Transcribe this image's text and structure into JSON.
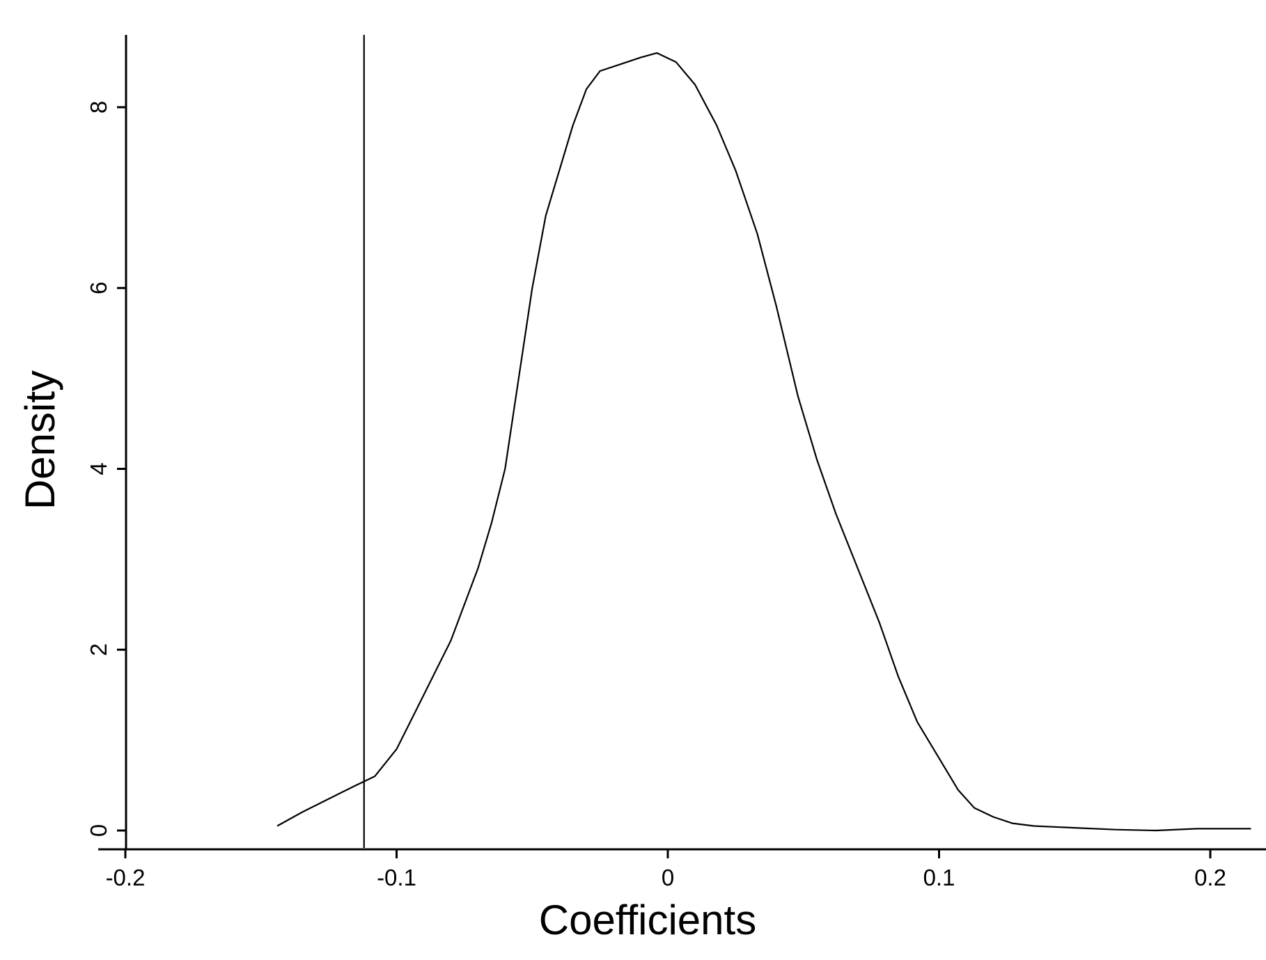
{
  "chart_data": {
    "type": "line",
    "title": "",
    "xlabel": "Coefficients",
    "ylabel": "Density",
    "xlim": [
      -0.21,
      0.225
    ],
    "ylim": [
      -0.2,
      8.8
    ],
    "x_ticks": [
      -0.2,
      -0.1,
      0,
      0.1,
      0.2
    ],
    "x_tick_labels": [
      "-0.2",
      "-0.1",
      "0",
      "0.1",
      "0.2"
    ],
    "y_ticks": [
      0,
      2,
      4,
      6,
      8
    ],
    "y_tick_labels": [
      "0",
      "2",
      "4",
      "6",
      "8"
    ],
    "grid": false,
    "legend": "none",
    "series": [
      {
        "x": [
          -0.144,
          -0.135,
          -0.125,
          -0.115,
          -0.108,
          -0.1,
          -0.095,
          -0.09,
          -0.085,
          -0.08,
          -0.075,
          -0.07,
          -0.065,
          -0.06,
          -0.055,
          -0.05,
          -0.045,
          -0.04,
          -0.035,
          -0.03,
          -0.025,
          -0.02,
          -0.015,
          -0.01,
          -0.004,
          0.003,
          0.01,
          0.018,
          0.025,
          0.033,
          0.04,
          0.048,
          0.055,
          0.062,
          0.07,
          0.078,
          0.085,
          0.092,
          0.1,
          0.107,
          0.113,
          0.12,
          0.127,
          0.135,
          0.15,
          0.165,
          0.18,
          0.195,
          0.215
        ],
        "y": [
          0.05,
          0.2,
          0.35,
          0.5,
          0.6,
          0.9,
          1.2,
          1.5,
          1.8,
          2.1,
          2.5,
          2.9,
          3.4,
          4.0,
          5.0,
          6.0,
          6.8,
          7.3,
          7.8,
          8.2,
          8.4,
          8.45,
          8.5,
          8.55,
          8.6,
          8.5,
          8.25,
          7.8,
          7.3,
          6.6,
          5.8,
          4.8,
          4.1,
          3.5,
          2.9,
          2.3,
          1.7,
          1.2,
          0.8,
          0.45,
          0.25,
          0.15,
          0.08,
          0.05,
          0.03,
          0.01,
          0.0,
          0.02,
          0.02
        ]
      }
    ],
    "annotations": [
      {
        "type": "vline",
        "x": -0.112
      }
    ]
  }
}
